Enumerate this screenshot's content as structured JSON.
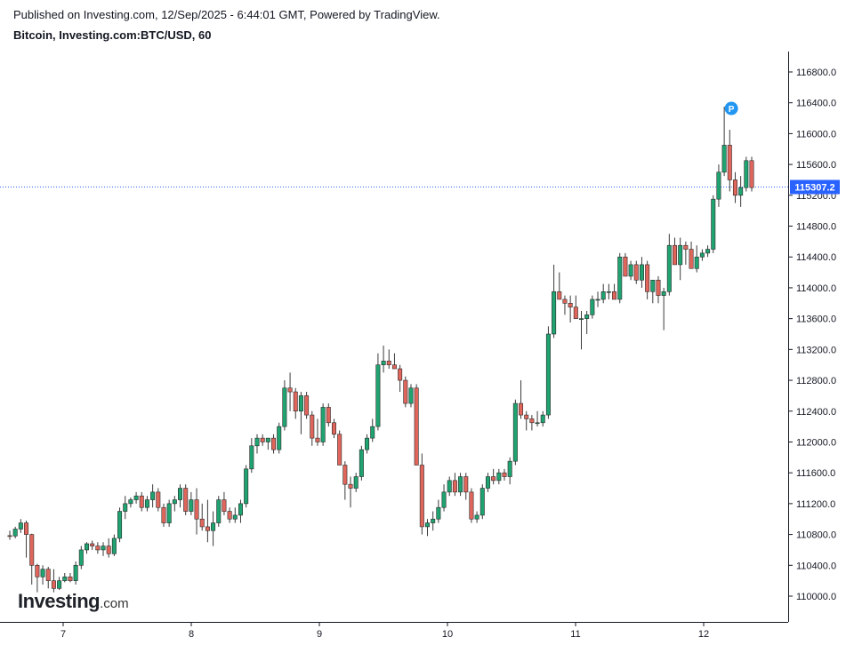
{
  "header": {
    "published": "Published on Investing.com, 12/Sep/2025 - 6:44:01 GMT, Powered by TradingView.",
    "symbol": "Bitcoin, Investing.com:BTC/USD, 60"
  },
  "logo": {
    "main": "Investing",
    "suffix": ".com"
  },
  "colors": {
    "up": "#26a69a",
    "down": "#ef5350",
    "up_body": "#1fa371",
    "down_body": "#e0665c",
    "price_line": "#2962ff",
    "marker": "#2196f3"
  },
  "marker_label": "P",
  "chart_data": {
    "type": "candlestick",
    "title": "Bitcoin, Investing.com:BTC/USD, 60",
    "x_axis_labels": [
      "7",
      "8",
      "9",
      "10",
      "11",
      "12"
    ],
    "y_ticks": [
      "116800.0",
      "116400.0",
      "116000.0",
      "115600.0",
      "115200.0",
      "114800.0",
      "114400.0",
      "114000.0",
      "113600.0",
      "113200.0",
      "112800.0",
      "112400.0",
      "112000.0",
      "111600.0",
      "111200.0",
      "110800.0",
      "110400.0",
      "110000.0"
    ],
    "ylim": [
      109700,
      117350
    ],
    "last_price": 115307.2,
    "last_price_label": "115307.2",
    "grid": false,
    "candles": [
      [
        110785,
        110850,
        110730,
        110780
      ],
      [
        110780,
        110900,
        110750,
        110870
      ],
      [
        110870,
        111000,
        110820,
        110950
      ],
      [
        110950,
        110980,
        110500,
        110800
      ],
      [
        110800,
        110810,
        110150,
        110400
      ],
      [
        110400,
        110420,
        110050,
        110250
      ],
      [
        110250,
        110400,
        110150,
        110350
      ],
      [
        110350,
        110380,
        110100,
        110200
      ],
      [
        110200,
        110350,
        110050,
        110100
      ],
      [
        110100,
        110250,
        110080,
        110200
      ],
      [
        110200,
        110300,
        110180,
        110250
      ],
      [
        110250,
        110300,
        110180,
        110200
      ],
      [
        110200,
        110450,
        110150,
        110400
      ],
      [
        110400,
        110650,
        110350,
        110600
      ],
      [
        110600,
        110700,
        110550,
        110680
      ],
      [
        110680,
        110720,
        110600,
        110650
      ],
      [
        110650,
        110700,
        110550,
        110600
      ],
      [
        110600,
        110700,
        110520,
        110650
      ],
      [
        110650,
        110750,
        110500,
        110550
      ],
      [
        110550,
        110800,
        110520,
        110750
      ],
      [
        110750,
        111150,
        110700,
        111100
      ],
      [
        111100,
        111300,
        111000,
        111200
      ],
      [
        111200,
        111280,
        111150,
        111250
      ],
      [
        111250,
        111350,
        111200,
        111300
      ],
      [
        111300,
        111350,
        111100,
        111150
      ],
      [
        111150,
        111300,
        111100,
        111250
      ],
      [
        111250,
        111450,
        111150,
        111350
      ],
      [
        111350,
        111400,
        111100,
        111150
      ],
      [
        111150,
        111200,
        110900,
        110950
      ],
      [
        110950,
        111250,
        110900,
        111200
      ],
      [
        111200,
        111300,
        111100,
        111250
      ],
      [
        111250,
        111450,
        111150,
        111400
      ],
      [
        111400,
        111450,
        111050,
        111100
      ],
      [
        111100,
        111350,
        111050,
        111250
      ],
      [
        111250,
        111400,
        110800,
        111000
      ],
      [
        111000,
        111200,
        110850,
        110900
      ],
      [
        110900,
        111250,
        110700,
        110850
      ],
      [
        110850,
        111100,
        110650,
        110950
      ],
      [
        110950,
        111300,
        110900,
        111250
      ],
      [
        111250,
        111350,
        111050,
        111100
      ],
      [
        111100,
        111150,
        110950,
        111000
      ],
      [
        111000,
        111150,
        110950,
        111050
      ],
      [
        111050,
        111250,
        110950,
        111200
      ],
      [
        111200,
        111700,
        111150,
        111650
      ],
      [
        111650,
        112050,
        111600,
        111950
      ],
      [
        111950,
        112100,
        111850,
        112050
      ],
      [
        112050,
        112100,
        111950,
        112000
      ],
      [
        112000,
        112050,
        111900,
        112050
      ],
      [
        112050,
        112100,
        111850,
        111900
      ],
      [
        111900,
        112250,
        111850,
        112200
      ],
      [
        112200,
        112800,
        112150,
        112700
      ],
      [
        112700,
        112900,
        112400,
        112650
      ],
      [
        112650,
        112700,
        112300,
        112400
      ],
      [
        112400,
        112650,
        112100,
        112600
      ],
      [
        112600,
        112650,
        112300,
        112350
      ],
      [
        112350,
        112400,
        111950,
        112050
      ],
      [
        112050,
        112300,
        111950,
        112000
      ],
      [
        112000,
        112500,
        111950,
        112450
      ],
      [
        112450,
        112500,
        112200,
        112250
      ],
      [
        112250,
        112300,
        112050,
        112100
      ],
      [
        112100,
        112150,
        111700,
        111700
      ],
      [
        111700,
        111750,
        111250,
        111450
      ],
      [
        111450,
        111550,
        111150,
        111400
      ],
      [
        111400,
        111600,
        111350,
        111550
      ],
      [
        111550,
        111950,
        111500,
        111900
      ],
      [
        111900,
        112100,
        111850,
        112050
      ],
      [
        112050,
        112300,
        112000,
        112200
      ],
      [
        112200,
        113150,
        112150,
        113000
      ],
      [
        113000,
        113250,
        112900,
        113050
      ],
      [
        113050,
        113200,
        112950,
        113000
      ],
      [
        113000,
        113150,
        112950,
        112950
      ],
      [
        112950,
        113000,
        112650,
        112800
      ],
      [
        112800,
        112850,
        112450,
        112500
      ],
      [
        112500,
        112750,
        112450,
        112700
      ],
      [
        112700,
        112750,
        111700,
        111700
      ],
      [
        111700,
        111850,
        110800,
        110900
      ],
      [
        110900,
        111000,
        110780,
        110950
      ],
      [
        110950,
        111100,
        110850,
        111000
      ],
      [
        111000,
        111250,
        110950,
        111150
      ],
      [
        111150,
        111450,
        111100,
        111350
      ],
      [
        111350,
        111550,
        111300,
        111500
      ],
      [
        111500,
        111600,
        111300,
        111350
      ],
      [
        111350,
        111600,
        111300,
        111550
      ],
      [
        111550,
        111600,
        111250,
        111350
      ],
      [
        111350,
        111400,
        110950,
        111000
      ],
      [
        111000,
        111100,
        110950,
        111050
      ],
      [
        111050,
        111450,
        111000,
        111400
      ],
      [
        111400,
        111600,
        111350,
        111550
      ],
      [
        111550,
        111650,
        111450,
        111500
      ],
      [
        111500,
        111650,
        111450,
        111600
      ],
      [
        111600,
        111650,
        111500,
        111550
      ],
      [
        111550,
        111800,
        111450,
        111750
      ],
      [
        111750,
        112550,
        111700,
        112500
      ],
      [
        112500,
        112800,
        112300,
        112350
      ],
      [
        112350,
        112400,
        112150,
        112300
      ],
      [
        112300,
        112350,
        112150,
        112250
      ],
      [
        112250,
        112400,
        112200,
        112250
      ],
      [
        112250,
        112400,
        112200,
        112350
      ],
      [
        112350,
        113500,
        112300,
        113400
      ],
      [
        113400,
        114300,
        113350,
        113950
      ],
      [
        113950,
        114200,
        113850,
        113850
      ],
      [
        113850,
        113900,
        113650,
        113800
      ],
      [
        113800,
        113900,
        113550,
        113750
      ],
      [
        113750,
        113900,
        113600,
        113600
      ],
      [
        113600,
        113700,
        113200,
        113600
      ],
      [
        113600,
        113700,
        113400,
        113650
      ],
      [
        113650,
        113900,
        113600,
        113850
      ],
      [
        113850,
        113950,
        113750,
        113850
      ],
      [
        113850,
        114050,
        113800,
        113950
      ],
      [
        113950,
        114050,
        113850,
        113950
      ],
      [
        113950,
        114050,
        113850,
        113850
      ],
      [
        113850,
        114450,
        113800,
        114400
      ],
      [
        114400,
        114450,
        114150,
        114150
      ],
      [
        114150,
        114350,
        114100,
        114300
      ],
      [
        114300,
        114350,
        114050,
        114100
      ],
      [
        114100,
        114400,
        114000,
        114300
      ],
      [
        114300,
        114350,
        113850,
        113950
      ],
      [
        113950,
        114100,
        113800,
        114100
      ],
      [
        114100,
        114150,
        113800,
        113900
      ],
      [
        113900,
        114000,
        113450,
        113950
      ],
      [
        113950,
        114700,
        113900,
        114550
      ],
      [
        114550,
        114650,
        114300,
        114300
      ],
      [
        114300,
        114650,
        114100,
        114550
      ],
      [
        114550,
        114600,
        114300,
        114500
      ],
      [
        114500,
        114600,
        114250,
        114250
      ],
      [
        114250,
        114550,
        114200,
        114400
      ],
      [
        114400,
        114500,
        114350,
        114450
      ],
      [
        114450,
        114550,
        114400,
        114500
      ],
      [
        114500,
        115200,
        114450,
        115150
      ],
      [
        115150,
        115600,
        115050,
        115500
      ],
      [
        115500,
        116350,
        115450,
        115850
      ],
      [
        115850,
        116050,
        115250,
        115400
      ],
      [
        115400,
        115500,
        115100,
        115200
      ],
      [
        115200,
        115450,
        115050,
        115300
      ],
      [
        115300,
        115700,
        115250,
        115650
      ],
      [
        115650,
        115700,
        115250,
        115300
      ]
    ]
  }
}
